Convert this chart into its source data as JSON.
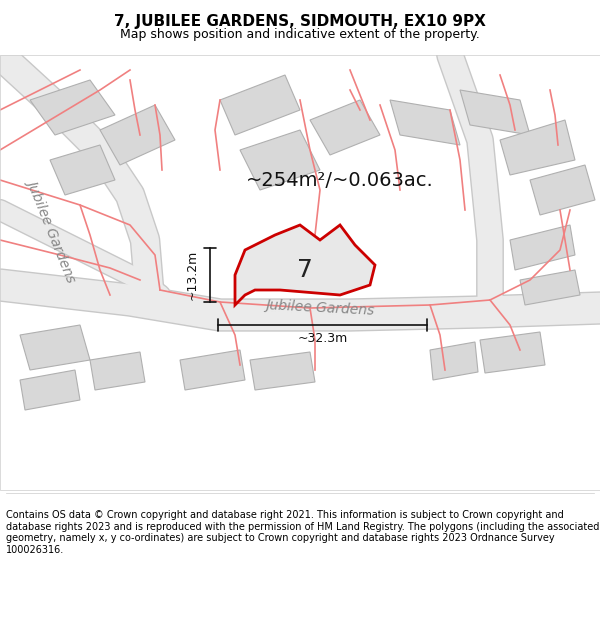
{
  "title": "7, JUBILEE GARDENS, SIDMOUTH, EX10 9PX",
  "subtitle": "Map shows position and indicative extent of the property.",
  "footer": "Contains OS data © Crown copyright and database right 2021. This information is subject to Crown copyright and database rights 2023 and is reproduced with the permission of HM Land Registry. The polygons (including the associated geometry, namely x, y co-ordinates) are subject to Crown copyright and database rights 2023 Ordnance Survey 100026316.",
  "area_text": "~254m²/~0.063ac.",
  "number_label": "7",
  "dim1_label": "~13.2m",
  "dim2_label": "~32.3m",
  "street_label_diagonal": "Jubilee Gardens",
  "street_label_horizontal": "Jubilee Gardens",
  "bg_color": "#ffffff",
  "map_bg": "#f5f5f5",
  "building_fill": "#d8d8d8",
  "building_edge": "#aaaaaa",
  "road_fill": "#e8e8e8",
  "road_stroke": "#cccccc",
  "pink_line_color": "#f08080",
  "highlight_fill": "#e8e8e8",
  "highlight_stroke": "#cc0000",
  "dim_line_color": "#111111",
  "title_fontsize": 11,
  "subtitle_fontsize": 9,
  "footer_fontsize": 7,
  "area_fontsize": 14,
  "number_fontsize": 18,
  "dim_fontsize": 9,
  "street_fontsize": 10
}
